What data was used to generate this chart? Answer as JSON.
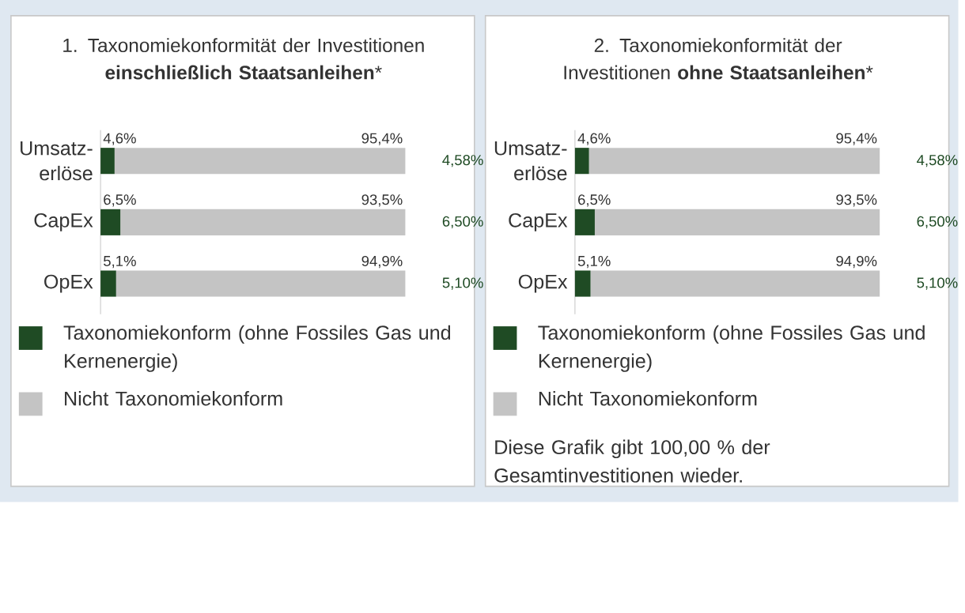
{
  "chart_data": [
    {
      "type": "bar",
      "orientation": "horizontal",
      "stacked": true,
      "title": "1. Taxonomiekonformität der Investitionen **einschließlich Staatsanleihen***",
      "categories": [
        "Umsatz-erlöse",
        "CapEx",
        "OpEx"
      ],
      "series": [
        {
          "name": "Taxonomiekonform (ohne Fossiles Gas und Kernenergie)",
          "color": "#1f4b24",
          "values": [
            4.6,
            6.5,
            5.1
          ],
          "value_labels": [
            "4,6%",
            "6,5%",
            "5,1%"
          ]
        },
        {
          "name": "Nicht Taxonomiekonform",
          "color": "#c4c4c4",
          "values": [
            95.4,
            93.5,
            94.9
          ],
          "value_labels": [
            "95,4%",
            "93,5%",
            "94,9%"
          ]
        }
      ],
      "xlim": [
        0,
        100
      ],
      "tick_labels": "y",
      "legend": "bottom",
      "annotations": [
        "4,58%",
        "6,50%",
        "5,10%"
      ]
    },
    {
      "type": "bar",
      "orientation": "horizontal",
      "stacked": true,
      "title": "2. Taxonomiekonformität der Investitionen **ohne Staatsanleihen***",
      "categories": [
        "Umsatz-erlöse",
        "CapEx",
        "OpEx"
      ],
      "series": [
        {
          "name": "Taxonomiekonform (ohne Fossiles Gas und Kernenergie)",
          "color": "#1f4b24",
          "values": [
            4.6,
            6.5,
            5.1
          ],
          "value_labels": [
            "4,6%",
            "6,5%",
            "5,1%"
          ]
        },
        {
          "name": "Nicht Taxonomiekonform",
          "color": "#c4c4c4",
          "values": [
            95.4,
            93.5,
            94.9
          ],
          "value_labels": [
            "95,4%",
            "93,5%",
            "94,9%"
          ]
        }
      ],
      "xlim": [
        0,
        100
      ],
      "tick_labels": "y",
      "legend": "bottom",
      "annotations": [
        "4,58%",
        "6,50%",
        "5,10%",
        "Diese Grafik gibt 100,00 % der Gesamtinvestitionen wieder."
      ]
    }
  ]
}
